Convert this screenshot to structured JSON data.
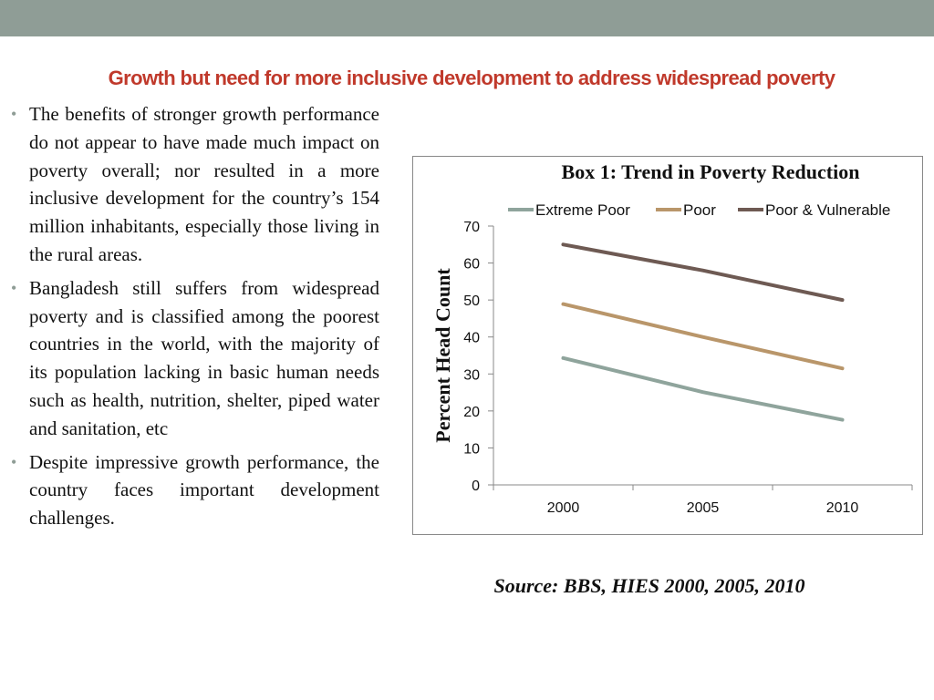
{
  "slide": {
    "title": "Growth but need for more inclusive development to address widespread poverty",
    "bullets": [
      "The benefits of stronger growth performance do not appear to have made much impact on poverty overall; nor resulted in a more inclusive development for the country’s 154 million inhabitants, especially those living in the rural areas.",
      "Bangladesh still suffers from widespread poverty and is classified among the poorest countries in the world, with the majority of its population lacking in basic human needs such as health, nutrition, shelter, piped water and sanitation, etc",
      "Despite impressive growth performance, the country faces important development challenges."
    ],
    "source": "Source: BBS, HIES 2000, 2005, 2010"
  },
  "colors": {
    "top_bar": "#8f9d96",
    "title": "#c0392b",
    "extreme_poor": "#8fa49c",
    "poor": "#b9966a",
    "poor_vulnerable": "#6e5a53"
  },
  "chart_data": {
    "type": "line",
    "title": "Box 1: Trend in Poverty Reduction",
    "xlabel": "",
    "ylabel": "Percent Head Count",
    "categories": [
      "2000",
      "2005",
      "2010"
    ],
    "ylim": [
      0,
      70
    ],
    "yticks": [
      0,
      10,
      20,
      30,
      40,
      50,
      60,
      70
    ],
    "grid": false,
    "legend": "top",
    "series": [
      {
        "name": "Extreme Poor",
        "values": [
          34.3,
          25.1,
          17.6
        ],
        "color": "#8fa49c"
      },
      {
        "name": "Poor",
        "values": [
          48.9,
          40.0,
          31.5
        ],
        "color": "#b9966a"
      },
      {
        "name": "Poor & Vulnerable",
        "values": [
          65.0,
          58.0,
          50.0
        ],
        "color": "#6e5a53"
      }
    ]
  }
}
